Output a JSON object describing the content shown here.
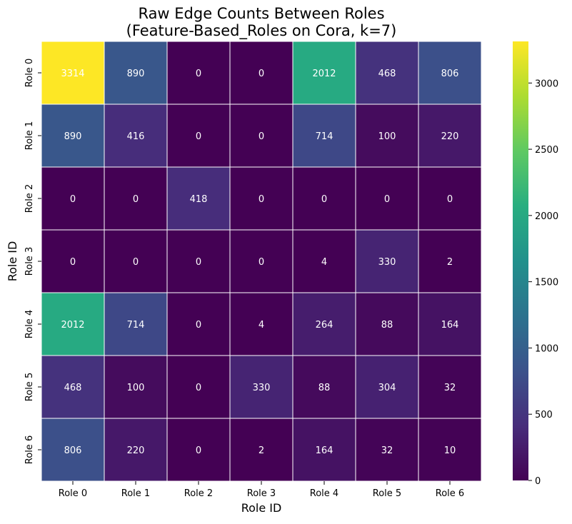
{
  "chart_data": {
    "type": "heatmap",
    "title": "Raw Edge Counts Between Roles",
    "subtitle": "(Feature-Based_Roles on Cora, k=7)",
    "xlabel": "Role ID",
    "ylabel": "Role ID",
    "x_categories": [
      "Role 0",
      "Role 1",
      "Role 2",
      "Role 3",
      "Role 4",
      "Role 5",
      "Role 6"
    ],
    "y_categories": [
      "Role 0",
      "Role 1",
      "Role 2",
      "Role 3",
      "Role 4",
      "Role 5",
      "Role 6"
    ],
    "values": [
      [
        3314,
        890,
        0,
        0,
        2012,
        468,
        806
      ],
      [
        890,
        416,
        0,
        0,
        714,
        100,
        220
      ],
      [
        0,
        0,
        418,
        0,
        0,
        0,
        0
      ],
      [
        0,
        0,
        0,
        0,
        4,
        330,
        2
      ],
      [
        2012,
        714,
        0,
        4,
        264,
        88,
        164
      ],
      [
        468,
        100,
        0,
        330,
        88,
        304,
        32
      ],
      [
        806,
        220,
        0,
        2,
        164,
        32,
        10
      ]
    ],
    "colormap": "viridis",
    "vmin": 0,
    "vmax": 3314,
    "colorbar_ticks": [
      0,
      500,
      1000,
      1500,
      2000,
      2500,
      3000
    ],
    "annotations": true,
    "annotation_color": "#ffffff",
    "cell_border_color": "#ffffff",
    "legend": "colorbar-right"
  }
}
